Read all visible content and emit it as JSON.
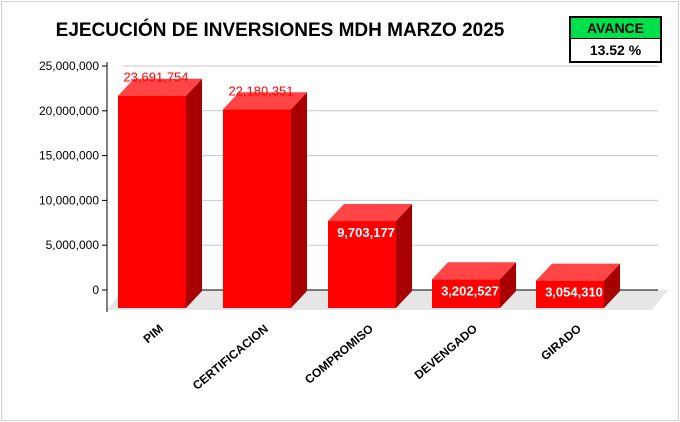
{
  "chart_data": {
    "type": "bar",
    "title": "EJECUCIÓN DE INVERSIONES MDH MARZO 2025",
    "categories": [
      "PIM",
      "CERTIFICACION",
      "COMPROMISO",
      "DEVENGADO",
      "GIRADO"
    ],
    "values": [
      23691754,
      22180351,
      9703177,
      3202527,
      3054310
    ],
    "data_labels": [
      "23,691,754",
      "22,180,351",
      "9,703,177",
      "3,202,527",
      "3,054,310"
    ],
    "ylim": [
      0,
      25000000
    ],
    "yticks": [
      0,
      5000000,
      10000000,
      15000000,
      20000000,
      25000000
    ],
    "ytick_labels": [
      "0",
      "5,000,000",
      "10,000,000",
      "15,000,000",
      "20,000,000",
      "25,000,000"
    ],
    "grid": true,
    "style": "3d-bar",
    "colors": {
      "front": "#ff0000",
      "side": "#a80000",
      "top": "#ff4545",
      "label_inside": "#ffffff",
      "label_above": "#ff0000"
    }
  },
  "avance": {
    "label": "AVANCE",
    "value": "13.52 %"
  }
}
